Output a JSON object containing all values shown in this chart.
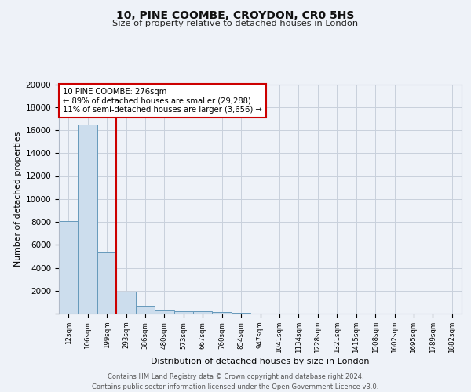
{
  "title1": "10, PINE COOMBE, CROYDON, CR0 5HS",
  "title2": "Size of property relative to detached houses in London",
  "xlabel": "Distribution of detached houses by size in London",
  "ylabel": "Number of detached properties",
  "bar_labels": [
    "12sqm",
    "106sqm",
    "199sqm",
    "293sqm",
    "386sqm",
    "480sqm",
    "573sqm",
    "667sqm",
    "760sqm",
    "854sqm",
    "947sqm",
    "1041sqm",
    "1134sqm",
    "1228sqm",
    "1321sqm",
    "1415sqm",
    "1508sqm",
    "1602sqm",
    "1695sqm",
    "1789sqm",
    "1882sqm"
  ],
  "bar_values": [
    8100,
    16500,
    5300,
    1900,
    700,
    300,
    200,
    200,
    150,
    100,
    0,
    0,
    0,
    0,
    0,
    0,
    0,
    0,
    0,
    0,
    0
  ],
  "bar_color": "#ccdded",
  "bar_edge_color": "#6699bb",
  "annotation_line1": "10 PINE COOMBE: 276sqm",
  "annotation_line2": "← 89% of detached houses are smaller (29,288)",
  "annotation_line3": "11% of semi-detached houses are larger (3,656) →",
  "vline_color": "#cc0000",
  "annotation_box_edge": "#cc0000",
  "background_color": "#eef2f8",
  "plot_bg_color": "#eef2f8",
  "grid_color": "#c8d0dc",
  "ylim": [
    0,
    20000
  ],
  "yticks": [
    0,
    2000,
    4000,
    6000,
    8000,
    10000,
    12000,
    14000,
    16000,
    18000,
    20000
  ],
  "footer": "Contains HM Land Registry data © Crown copyright and database right 2024.\nContains public sector information licensed under the Open Government Licence v3.0."
}
